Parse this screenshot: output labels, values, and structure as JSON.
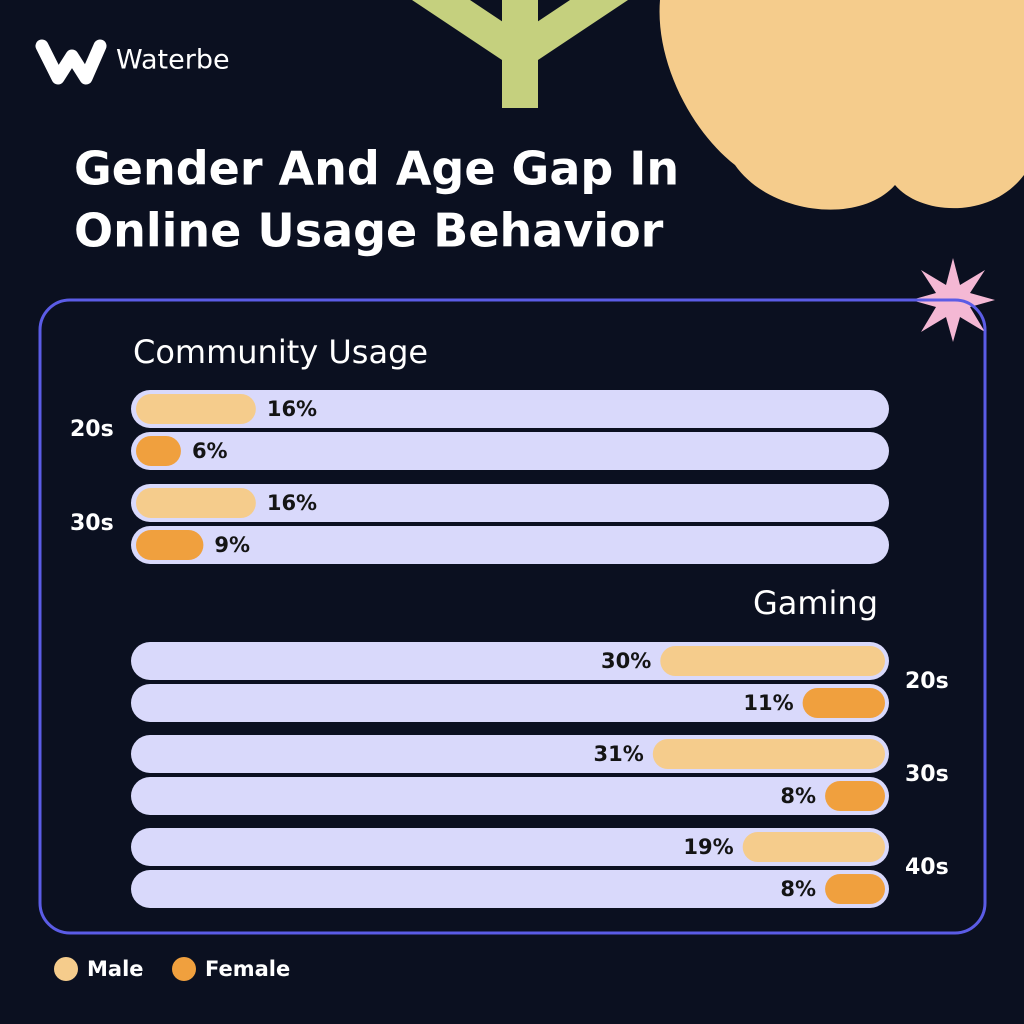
{
  "header": {
    "brand": "Waterbe",
    "title": [
      "Gender And Age Gap In",
      "Online Usage Behavior"
    ]
  },
  "chart_data": [
    {
      "type": "bar",
      "title": "Community Usage",
      "orientation": "horizontal",
      "x_reversed": false,
      "categories": [
        "20s",
        "30s"
      ],
      "xlim": [
        0,
        100
      ],
      "series": [
        {
          "name": "Male",
          "color": "#f5cc8c",
          "values": [
            16,
            16
          ],
          "value_labels": [
            "16%",
            "16%"
          ]
        },
        {
          "name": "Female",
          "color": "#f0a03e",
          "values": [
            6,
            9
          ],
          "value_labels": [
            "6%",
            "9%"
          ]
        }
      ]
    },
    {
      "type": "bar",
      "title": "Gaming",
      "orientation": "horizontal",
      "x_reversed": true,
      "categories": [
        "20s",
        "30s",
        "40s"
      ],
      "xlim": [
        0,
        100
      ],
      "series": [
        {
          "color": "#f5cc8c",
          "values": [
            30,
            31,
            19
          ],
          "value_labels": [
            "30%",
            "31%",
            "19%"
          ]
        },
        {
          "color": "#f0a03e",
          "values": [
            11,
            8,
            8
          ],
          "value_labels": [
            "11%",
            "8%",
            "8%"
          ]
        }
      ]
    }
  ]
}
